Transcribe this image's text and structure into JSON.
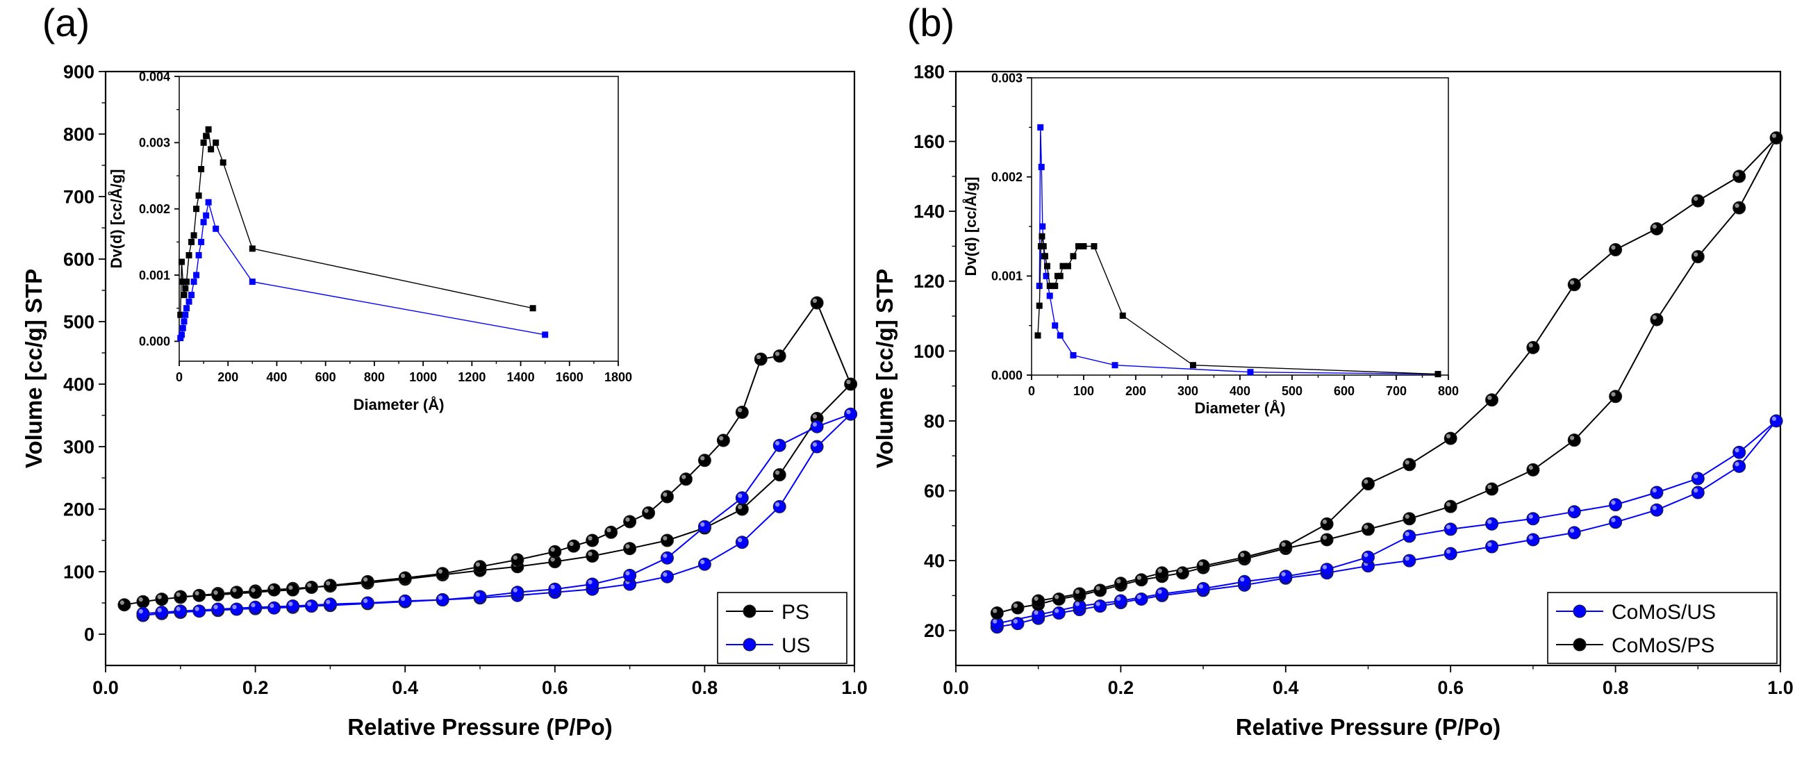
{
  "chart_data": [
    {
      "panel": "(a)",
      "type": "line",
      "xlabel": "Relative Pressure (P/Po)",
      "ylabel": "Volume [cc/g] STP",
      "xlim": [
        0.0,
        1.0
      ],
      "ylim": [
        -50,
        900
      ],
      "xticks": [
        0.0,
        0.2,
        0.4,
        0.6,
        0.8,
        1.0
      ],
      "xtick_labels": [
        "0.0",
        "0.2",
        "0.4",
        "0.6",
        "0.8",
        "1.0"
      ],
      "yticks": [
        0,
        100,
        200,
        300,
        400,
        500,
        600,
        700,
        800,
        900
      ],
      "ytick_labels": [
        "0",
        "100",
        "200",
        "300",
        "400",
        "500",
        "600",
        "700",
        "800",
        "900"
      ],
      "legend_position": "bottom-right",
      "series": [
        {
          "name": "PS",
          "color": "#000000",
          "x": [
            0.025,
            0.05,
            0.075,
            0.1,
            0.125,
            0.15,
            0.175,
            0.2,
            0.225,
            0.25,
            0.275,
            0.3,
            0.35,
            0.4,
            0.45,
            0.5,
            0.55,
            0.6,
            0.65,
            0.7,
            0.75,
            0.8,
            0.85,
            0.9,
            0.95,
            0.995,
            0.95,
            0.9,
            0.875,
            0.85,
            0.825,
            0.8,
            0.775,
            0.75,
            0.725,
            0.7,
            0.675,
            0.65,
            0.625,
            0.6,
            0.55,
            0.5,
            0.45,
            0.4,
            0.35,
            0.3,
            0.25,
            0.2,
            0.15,
            0.1
          ],
          "y": [
            47,
            52,
            56,
            59,
            62,
            65,
            67,
            69,
            71,
            73,
            75,
            77,
            82,
            88,
            95,
            102,
            108,
            116,
            125,
            137,
            150,
            170,
            200,
            255,
            345,
            400,
            530,
            445,
            440,
            355,
            310,
            278,
            248,
            220,
            194,
            180,
            163,
            150,
            141,
            132,
            119,
            108,
            97,
            90,
            84,
            78,
            71,
            67,
            63,
            60
          ]
        },
        {
          "name": "US",
          "color": "#0000ff",
          "x": [
            0.05,
            0.075,
            0.1,
            0.125,
            0.15,
            0.175,
            0.2,
            0.225,
            0.25,
            0.275,
            0.3,
            0.35,
            0.4,
            0.45,
            0.5,
            0.55,
            0.6,
            0.65,
            0.7,
            0.75,
            0.8,
            0.85,
            0.9,
            0.95,
            0.995,
            0.95,
            0.9,
            0.85,
            0.8,
            0.75,
            0.7,
            0.65,
            0.6,
            0.55,
            0.5,
            0.45,
            0.4,
            0.35,
            0.3,
            0.25,
            0.2,
            0.15,
            0.1,
            0.075,
            0.05
          ],
          "y": [
            30,
            33,
            35,
            37,
            38,
            40,
            41,
            42,
            43,
            45,
            46,
            49,
            52,
            55,
            58,
            62,
            67,
            72,
            80,
            92,
            112,
            147,
            204,
            300,
            352,
            332,
            302,
            218,
            172,
            122,
            94,
            80,
            72,
            67,
            60,
            55,
            53,
            50,
            48,
            45,
            43,
            40,
            37,
            35,
            33
          ]
        }
      ],
      "inset": {
        "xlabel": "Diameter (Å)",
        "ylabel": "Dv(d) [cc/Å/g]",
        "xlim": [
          0,
          1800
        ],
        "ylim": [
          -0.0003,
          0.004
        ],
        "xticks": [
          0,
          200,
          400,
          600,
          800,
          1000,
          1200,
          1400,
          1600,
          1800
        ],
        "xtick_labels": [
          "0",
          "200",
          "400",
          "600",
          "800",
          "1000",
          "1200",
          "1400",
          "1600",
          "1800"
        ],
        "yticks": [
          0.0,
          0.001,
          0.002,
          0.003,
          0.004
        ],
        "ytick_labels": [
          "0.000",
          "0.001",
          "0.002",
          "0.003",
          "0.004"
        ],
        "series": [
          {
            "name": "PS",
            "color": "#000000",
            "x": [
              5,
              10,
              15,
              20,
              25,
              30,
              40,
              50,
              60,
              70,
              80,
              90,
              100,
              110,
              120,
              130,
              150,
              180,
              300,
              1450
            ],
            "y": [
              0.0004,
              0.0012,
              0.0009,
              0.0007,
              0.0008,
              0.0009,
              0.0013,
              0.0015,
              0.0016,
              0.002,
              0.0022,
              0.0026,
              0.003,
              0.0031,
              0.0032,
              0.0029,
              0.003,
              0.0027,
              0.0014,
              0.0005
            ]
          },
          {
            "name": "US",
            "color": "#0000ff",
            "x": [
              5,
              10,
              15,
              20,
              25,
              30,
              40,
              50,
              60,
              70,
              80,
              90,
              100,
              110,
              120,
              150,
              300,
              1500
            ],
            "y": [
              5e-05,
              0.0001,
              0.0002,
              0.0003,
              0.0004,
              0.0005,
              0.0006,
              0.0007,
              0.0009,
              0.001,
              0.0013,
              0.0015,
              0.0018,
              0.0019,
              0.0021,
              0.0017,
              0.0009,
              0.0001
            ]
          }
        ]
      }
    },
    {
      "panel": "(b)",
      "type": "line",
      "xlabel": "Relative Pressure (P/Po)",
      "ylabel": "Volume [cc/g] STP",
      "xlim": [
        0.0,
        1.0
      ],
      "ylim": [
        10,
        180
      ],
      "xticks": [
        0.0,
        0.2,
        0.4,
        0.6,
        0.8,
        1.0
      ],
      "xtick_labels": [
        "0.0",
        "0.2",
        "0.4",
        "0.6",
        "0.8",
        "1.0"
      ],
      "yticks": [
        20,
        40,
        60,
        80,
        100,
        120,
        140,
        160,
        180
      ],
      "ytick_labels": [
        "20",
        "40",
        "60",
        "80",
        "100",
        "120",
        "140",
        "160",
        "180"
      ],
      "legend_position": "bottom-right",
      "series": [
        {
          "name": "CoMoS/US",
          "color": "#0000ff",
          "x": [
            0.05,
            0.075,
            0.1,
            0.125,
            0.15,
            0.175,
            0.2,
            0.225,
            0.25,
            0.3,
            0.35,
            0.4,
            0.45,
            0.5,
            0.55,
            0.6,
            0.65,
            0.7,
            0.75,
            0.8,
            0.85,
            0.9,
            0.95,
            0.995,
            0.95,
            0.9,
            0.85,
            0.8,
            0.75,
            0.7,
            0.65,
            0.6,
            0.55,
            0.5,
            0.45,
            0.4,
            0.35,
            0.3,
            0.25,
            0.2,
            0.15,
            0.1,
            0.05
          ],
          "y": [
            21,
            22,
            23.5,
            25,
            26,
            27,
            28,
            29,
            30,
            31.5,
            33,
            35,
            36.5,
            38.5,
            40,
            42,
            44,
            46,
            48,
            51,
            54.5,
            59.5,
            67,
            80,
            71,
            63.5,
            59.5,
            56,
            54,
            52,
            50.5,
            49,
            47,
            41,
            37.5,
            35.5,
            34,
            32,
            30.5,
            28.5,
            27,
            24.5,
            22
          ]
        },
        {
          "name": "CoMoS/PS",
          "color": "#000000",
          "x": [
            0.05,
            0.075,
            0.1,
            0.125,
            0.15,
            0.175,
            0.2,
            0.225,
            0.25,
            0.275,
            0.3,
            0.35,
            0.4,
            0.45,
            0.5,
            0.55,
            0.6,
            0.65,
            0.7,
            0.75,
            0.8,
            0.85,
            0.9,
            0.95,
            0.995,
            0.95,
            0.9,
            0.85,
            0.8,
            0.75,
            0.7,
            0.65,
            0.6,
            0.55,
            0.5,
            0.45,
            0.4,
            0.35,
            0.3,
            0.25,
            0.2,
            0.15,
            0.1
          ],
          "y": [
            25,
            26.5,
            27.5,
            29,
            30,
            31.5,
            33,
            34.5,
            35.5,
            36.5,
            38,
            40.5,
            43.5,
            46,
            49,
            52,
            55.5,
            60.5,
            66,
            74.5,
            87,
            109,
            127,
            141,
            161,
            150,
            143,
            135,
            129,
            119,
            101,
            86,
            75,
            67.5,
            62,
            50.5,
            44,
            41,
            38.5,
            36.5,
            33.5,
            30.5,
            28.5
          ]
        }
      ],
      "inset": {
        "xlabel": "Diameter (Å)",
        "ylabel": "Dv(d) [cc/Å/g]",
        "xlim": [
          0,
          800
        ],
        "ylim": [
          0.0,
          0.003
        ],
        "xticks": [
          0,
          100,
          200,
          300,
          400,
          500,
          600,
          700,
          800
        ],
        "xtick_labels": [
          "0",
          "100",
          "200",
          "300",
          "400",
          "500",
          "600",
          "700",
          "800"
        ],
        "yticks": [
          0.0,
          0.001,
          0.002,
          0.003
        ],
        "ytick_labels": [
          "0.000",
          "0.001",
          "0.002",
          "0.003"
        ],
        "series": [
          {
            "name": "CoMoS/US",
            "color": "#0000ff",
            "x": [
              15,
              17,
              19,
              21,
              24,
              28,
              35,
              45,
              55,
              80,
              160,
              420,
              780
            ],
            "y": [
              0.0009,
              0.0025,
              0.0021,
              0.0015,
              0.0012,
              0.001,
              0.0008,
              0.0005,
              0.0004,
              0.0002,
              0.0001,
              3e-05,
              1e-05
            ]
          },
          {
            "name": "CoMoS/PS",
            "color": "#000000",
            "x": [
              12,
              15,
              18,
              20,
              23,
              26,
              30,
              35,
              40,
              45,
              50,
              55,
              60,
              70,
              80,
              90,
              100,
              120,
              175,
              310,
              780
            ],
            "y": [
              0.0004,
              0.0007,
              0.0013,
              0.0014,
              0.0013,
              0.0012,
              0.0011,
              0.0009,
              0.0009,
              0.0009,
              0.001,
              0.001,
              0.0011,
              0.0011,
              0.0012,
              0.0013,
              0.0013,
              0.0013,
              0.0006,
              0.0001,
              1e-05
            ]
          }
        ]
      }
    }
  ]
}
